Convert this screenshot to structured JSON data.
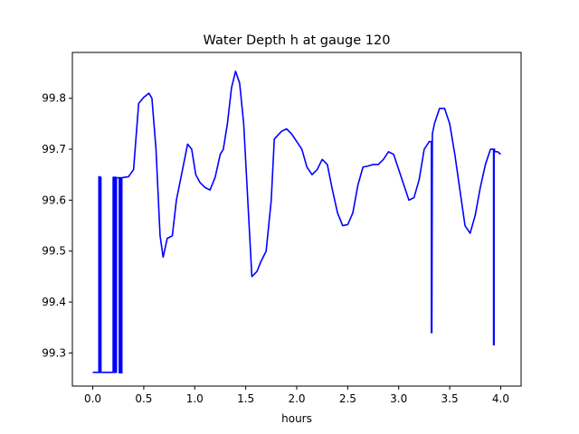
{
  "chart_data": {
    "type": "line",
    "title": "Water Depth h at gauge 120",
    "xlabel": "hours",
    "ylabel": "",
    "xlim": [
      -0.2,
      4.2
    ],
    "ylim": [
      99.235,
      99.89
    ],
    "xticks": [
      0.0,
      0.5,
      1.0,
      1.5,
      2.0,
      2.5,
      3.0,
      3.5,
      4.0
    ],
    "xtick_labels": [
      "0.0",
      "0.5",
      "1.0",
      "1.5",
      "2.0",
      "2.5",
      "3.0",
      "3.5",
      "4.0"
    ],
    "yticks": [
      99.3,
      99.4,
      99.5,
      99.6,
      99.7,
      99.8
    ],
    "ytick_labels": [
      "99.3",
      "99.4",
      "99.5",
      "99.6",
      "99.7",
      "99.8"
    ],
    "grid": false,
    "series": [
      {
        "color": "#0000ff",
        "x": [
          0.0,
          0.06,
          0.06,
          0.065,
          0.065,
          0.075,
          0.075,
          0.08,
          0.08,
          0.2,
          0.2,
          0.205,
          0.205,
          0.215,
          0.215,
          0.225,
          0.225,
          0.232,
          0.232,
          0.26,
          0.26,
          0.262,
          0.262,
          0.275,
          0.275,
          0.285,
          0.285,
          0.35,
          0.4,
          0.45,
          0.5,
          0.55,
          0.58,
          0.62,
          0.66,
          0.69,
          0.73,
          0.78,
          0.82,
          0.88,
          0.93,
          0.97,
          1.01,
          1.05,
          1.1,
          1.15,
          1.2,
          1.25,
          1.28,
          1.32,
          1.36,
          1.4,
          1.44,
          1.48,
          1.52,
          1.56,
          1.61,
          1.65,
          1.7,
          1.75,
          1.78,
          1.85,
          1.9,
          1.95,
          2.0,
          2.05,
          2.1,
          2.15,
          2.2,
          2.25,
          2.3,
          2.35,
          2.4,
          2.45,
          2.5,
          2.55,
          2.6,
          2.65,
          2.7,
          2.75,
          2.8,
          2.85,
          2.9,
          2.95,
          3.0,
          3.05,
          3.1,
          3.15,
          3.2,
          3.25,
          3.3,
          3.32,
          3.32,
          3.325,
          3.33,
          3.33,
          3.35,
          3.4,
          3.45,
          3.5,
          3.55,
          3.6,
          3.65,
          3.7,
          3.75,
          3.8,
          3.85,
          3.9,
          3.93,
          3.93,
          3.935,
          3.935,
          3.94,
          3.94,
          3.97,
          4.0
        ],
        "y": [
          99.262,
          99.262,
          99.646,
          99.646,
          99.262,
          99.262,
          99.645,
          99.645,
          99.262,
          99.262,
          99.645,
          99.645,
          99.262,
          99.262,
          99.645,
          99.645,
          99.262,
          99.262,
          99.644,
          99.644,
          99.261,
          99.261,
          99.644,
          99.644,
          99.261,
          99.261,
          99.644,
          99.646,
          99.66,
          99.79,
          99.802,
          99.81,
          99.8,
          99.7,
          99.53,
          99.488,
          99.525,
          99.53,
          99.6,
          99.66,
          99.71,
          99.7,
          99.65,
          99.635,
          99.625,
          99.62,
          99.645,
          99.69,
          99.7,
          99.75,
          99.82,
          99.853,
          99.83,
          99.75,
          99.6,
          99.45,
          99.46,
          99.48,
          99.5,
          99.6,
          99.72,
          99.735,
          99.74,
          99.73,
          99.715,
          99.7,
          99.665,
          99.65,
          99.66,
          99.68,
          99.67,
          99.62,
          99.575,
          99.55,
          99.552,
          99.575,
          99.63,
          99.665,
          99.667,
          99.67,
          99.67,
          99.68,
          99.695,
          99.69,
          99.66,
          99.63,
          99.6,
          99.605,
          99.64,
          99.7,
          99.715,
          99.715,
          99.34,
          99.34,
          99.73,
          99.73,
          99.75,
          99.78,
          99.78,
          99.75,
          99.69,
          99.62,
          99.55,
          99.535,
          99.57,
          99.625,
          99.67,
          99.7,
          99.7,
          99.316,
          99.316,
          99.7,
          99.7,
          99.695,
          99.695,
          99.69
        ]
      }
    ]
  }
}
